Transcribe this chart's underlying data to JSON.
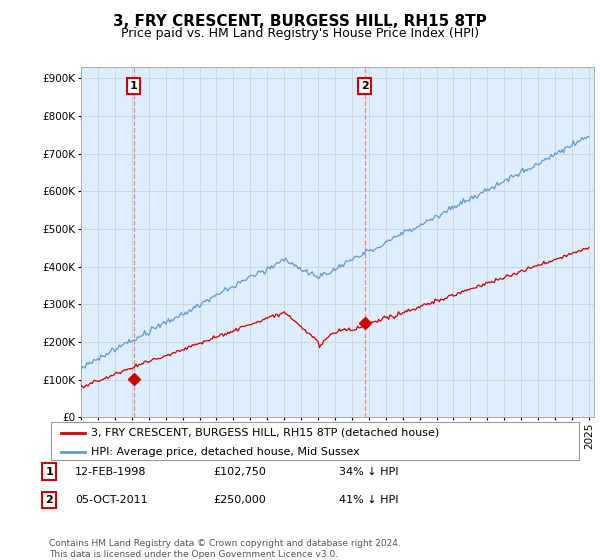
{
  "title": "3, FRY CRESCENT, BURGESS HILL, RH15 8TP",
  "subtitle": "Price paid vs. HM Land Registry's House Price Index (HPI)",
  "yticks": [
    0,
    100000,
    200000,
    300000,
    400000,
    500000,
    600000,
    700000,
    800000,
    900000
  ],
  "x_start_year": 1995,
  "x_end_year": 2025,
  "hpi_color": "#6699cc",
  "price_color": "#cc0000",
  "highlight_fill": "#ddeeff",
  "purchase1_year": 1998.11,
  "purchase1_price": 102750,
  "purchase1_label": "1",
  "purchase2_year": 2011.76,
  "purchase2_price": 250000,
  "purchase2_label": "2",
  "legend_label_red": "3, FRY CRESCENT, BURGESS HILL, RH15 8TP (detached house)",
  "legend_label_blue": "HPI: Average price, detached house, Mid Sussex",
  "footnote": "Contains HM Land Registry data © Crown copyright and database right 2024.\nThis data is licensed under the Open Government Licence v3.0.",
  "bg_color": "#ffffff",
  "grid_color": "#cccccc",
  "vline_color": "#ee8888",
  "title_fontsize": 11,
  "subtitle_fontsize": 9,
  "tick_fontsize": 7.5,
  "legend_fontsize": 8,
  "table_fontsize": 8
}
